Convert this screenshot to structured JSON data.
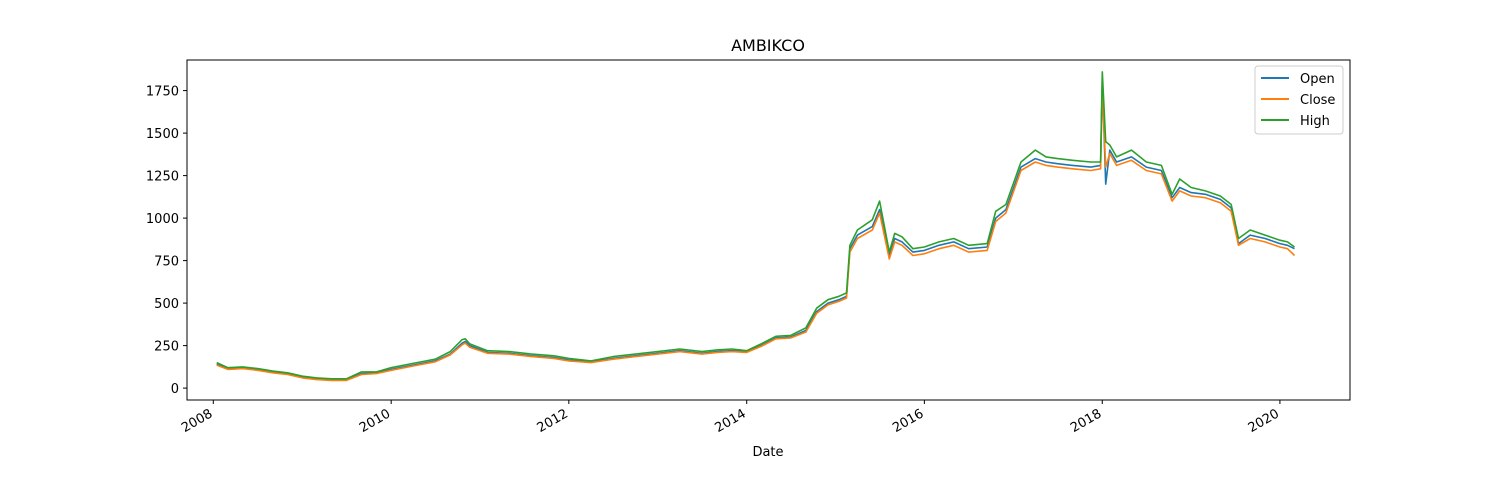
{
  "chart_data": {
    "type": "line",
    "title": "AMBIKCO",
    "xlabel": "Date",
    "ylabel": "",
    "xlim": [
      "2007-09-15",
      "2020-10-15"
    ],
    "ylim": [
      -70,
      1930
    ],
    "x_ticks": [
      "2008",
      "2010",
      "2012",
      "2014",
      "2016",
      "2018",
      "2020"
    ],
    "y_ticks": [
      0,
      250,
      500,
      750,
      1000,
      1250,
      1500,
      1750
    ],
    "grid": false,
    "legend_position": "top-right",
    "x": [
      "2008-01-15",
      "2008-03-01",
      "2008-05-01",
      "2008-07-01",
      "2008-09-01",
      "2008-11-01",
      "2009-01-01",
      "2009-03-01",
      "2009-05-01",
      "2009-07-01",
      "2009-09-01",
      "2009-11-01",
      "2010-01-01",
      "2010-04-01",
      "2010-07-01",
      "2010-09-01",
      "2010-10-20",
      "2010-11-01",
      "2010-11-20",
      "2011-02-01",
      "2011-05-01",
      "2011-08-01",
      "2011-11-01",
      "2012-01-01",
      "2012-04-01",
      "2012-07-01",
      "2012-10-01",
      "2013-01-01",
      "2013-04-01",
      "2013-07-01",
      "2013-09-01",
      "2013-11-01",
      "2014-01-01",
      "2014-03-01",
      "2014-05-01",
      "2014-07-01",
      "2014-09-01",
      "2014-10-15",
      "2014-12-01",
      "2015-01-15",
      "2015-02-15",
      "2015-03-01",
      "2015-04-01",
      "2015-06-01",
      "2015-07-01",
      "2015-08-10",
      "2015-09-01",
      "2015-10-01",
      "2015-11-15",
      "2016-01-01",
      "2016-03-01",
      "2016-05-01",
      "2016-07-01",
      "2016-09-15",
      "2016-10-20",
      "2016-12-01",
      "2017-02-01",
      "2017-04-01",
      "2017-05-15",
      "2017-07-01",
      "2017-09-01",
      "2017-11-15",
      "2017-12-25",
      "2018-01-01",
      "2018-01-15",
      "2018-02-01",
      "2018-03-01",
      "2018-05-01",
      "2018-07-01",
      "2018-09-01",
      "2018-10-15",
      "2018-11-15",
      "2019-01-01",
      "2019-03-01",
      "2019-05-01",
      "2019-06-15",
      "2019-07-15",
      "2019-09-01",
      "2019-11-01",
      "2020-01-01",
      "2020-02-01",
      "2020-03-01"
    ],
    "series": [
      {
        "name": "Open",
        "color": "#1f77b4",
        "values": [
          140,
          115,
          120,
          110,
          95,
          85,
          65,
          55,
          50,
          50,
          85,
          90,
          110,
          135,
          160,
          200,
          265,
          275,
          250,
          210,
          205,
          190,
          180,
          165,
          155,
          175,
          190,
          205,
          220,
          205,
          215,
          220,
          215,
          250,
          295,
          300,
          340,
          450,
          500,
          520,
          540,
          820,
          900,
          950,
          1050,
          780,
          880,
          860,
          800,
          810,
          840,
          860,
          820,
          830,
          1000,
          1050,
          1300,
          1350,
          1330,
          1320,
          1310,
          1300,
          1310,
          1820,
          1200,
          1400,
          1330,
          1360,
          1300,
          1280,
          1120,
          1180,
          1150,
          1140,
          1110,
          1060,
          850,
          900,
          880,
          850,
          840,
          820
        ]
      },
      {
        "name": "Close",
        "color": "#ff7f0e",
        "values": [
          135,
          110,
          115,
          105,
          90,
          80,
          60,
          50,
          45,
          45,
          80,
          85,
          105,
          130,
          155,
          195,
          255,
          265,
          240,
          205,
          200,
          185,
          175,
          160,
          150,
          170,
          185,
          200,
          215,
          200,
          210,
          215,
          210,
          245,
          290,
          295,
          330,
          440,
          490,
          510,
          530,
          800,
          880,
          930,
          1030,
          760,
          860,
          840,
          780,
          790,
          820,
          840,
          800,
          810,
          980,
          1030,
          1280,
          1330,
          1310,
          1300,
          1290,
          1280,
          1290,
          1780,
          1300,
          1380,
          1310,
          1340,
          1280,
          1260,
          1100,
          1160,
          1130,
          1120,
          1090,
          1040,
          840,
          880,
          860,
          830,
          820,
          780
        ]
      },
      {
        "name": "High",
        "color": "#2ca02c",
        "values": [
          150,
          120,
          125,
          115,
          100,
          90,
          70,
          60,
          55,
          55,
          95,
          95,
          120,
          145,
          170,
          215,
          285,
          290,
          260,
          220,
          215,
          200,
          190,
          175,
          160,
          185,
          200,
          215,
          230,
          215,
          225,
          230,
          220,
          260,
          305,
          310,
          355,
          470,
          520,
          540,
          560,
          840,
          930,
          990,
          1100,
          800,
          910,
          890,
          820,
          830,
          860,
          880,
          840,
          850,
          1040,
          1080,
          1330,
          1400,
          1360,
          1350,
          1340,
          1330,
          1330,
          1860,
          1450,
          1430,
          1360,
          1400,
          1330,
          1310,
          1140,
          1230,
          1180,
          1160,
          1130,
          1080,
          880,
          930,
          900,
          870,
          860,
          830
        ]
      }
    ]
  }
}
